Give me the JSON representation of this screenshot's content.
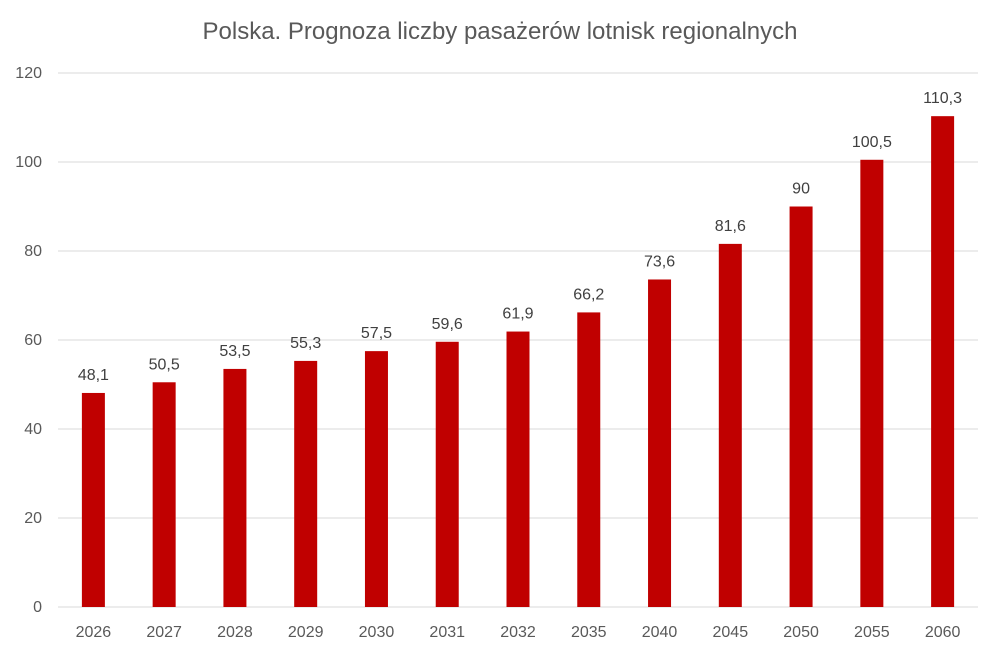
{
  "chart_data": {
    "type": "bar",
    "title": "Polska. Prognoza liczby pasażerów lotnisk regionalnych",
    "categories": [
      "2026",
      "2027",
      "2028",
      "2029",
      "2030",
      "2031",
      "2032",
      "2035",
      "2040",
      "2045",
      "2050",
      "2055",
      "2060"
    ],
    "values": [
      48.1,
      50.5,
      53.5,
      55.3,
      57.5,
      59.6,
      61.9,
      66.2,
      73.6,
      81.6,
      90,
      100.5,
      110.3
    ],
    "value_labels": [
      "48,1",
      "50,5",
      "53,5",
      "55,3",
      "57,5",
      "59,6",
      "61,9",
      "66,2",
      "73,6",
      "81,6",
      "90",
      "100,5",
      "110,3"
    ],
    "y_ticks": [
      0,
      20,
      40,
      60,
      80,
      100,
      120
    ],
    "ylim": [
      0,
      120
    ],
    "xlabel": "",
    "ylabel": "",
    "grid": true,
    "legend": "none",
    "bar_color": "#c00000"
  }
}
